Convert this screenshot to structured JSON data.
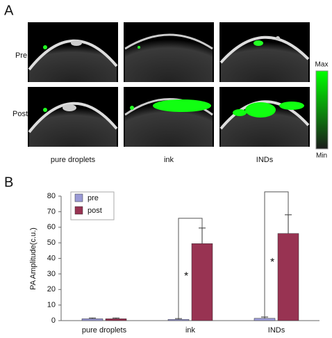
{
  "panel_a": {
    "label": "A",
    "row_labels": [
      "Pre",
      "Post"
    ],
    "column_labels": [
      "pure droplets",
      "ink",
      "INDs"
    ],
    "colorbar": {
      "max": "Max",
      "min": "Min"
    }
  },
  "chart_data": {
    "type": "bar",
    "panel_label": "B",
    "ylabel": "PA Amplitude(c.u.)",
    "categories": [
      "pure droplets",
      "ink",
      "INDs"
    ],
    "series": [
      {
        "name": "pre",
        "color": "#9a9ad6",
        "values": [
          1.2,
          0.8,
          1.5
        ],
        "errors": [
          0.5,
          0.5,
          0.8
        ]
      },
      {
        "name": "post",
        "color": "#983352",
        "values": [
          1.2,
          49.5,
          56
        ],
        "errors": [
          0.5,
          10,
          12
        ]
      }
    ],
    "ylim": [
      0,
      80
    ],
    "yticks": [
      0,
      10,
      20,
      30,
      40,
      50,
      60,
      70,
      80
    ],
    "legend": "upper left",
    "annotations": [
      {
        "category": 1,
        "text": "*"
      },
      {
        "category": 2,
        "text": "*"
      }
    ]
  }
}
